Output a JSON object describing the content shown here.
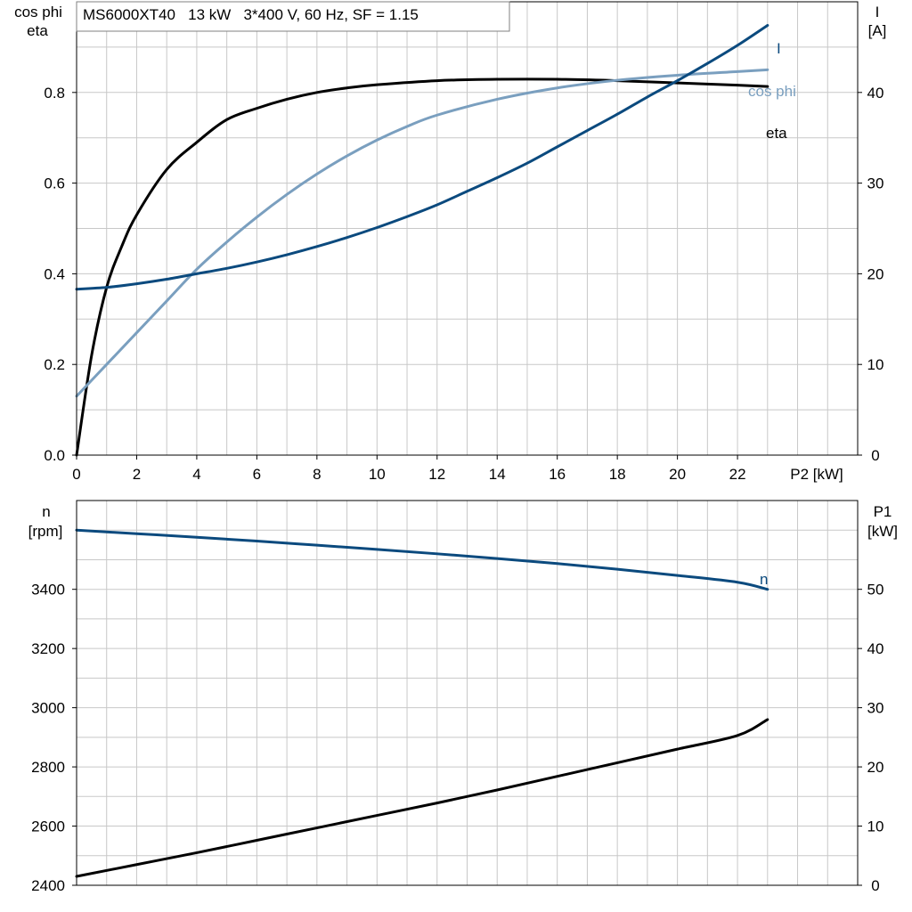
{
  "colors": {
    "grid": "#c8c8c8",
    "axis": "#000000",
    "eta": "#000000",
    "cosphi": "#7a9fbf",
    "current": "#0b4a7e",
    "speed": "#0b4a7e",
    "p1": "#000000"
  },
  "chart_data": [
    {
      "type": "line",
      "title": "MS6000XT40   13 kW   3*400 V, 60 Hz, SF = 1.15",
      "xlabel": "P2 [kW]",
      "ylabel_left": [
        "cos phi",
        "eta"
      ],
      "ylabel_right": [
        "I",
        "[A]"
      ],
      "xlim": [
        0,
        26
      ],
      "ylim_left": [
        0,
        1.0
      ],
      "ylim_right": [
        0,
        50
      ],
      "x_ticks": [
        "0",
        "2",
        "4",
        "6",
        "8",
        "10",
        "12",
        "14",
        "16",
        "18",
        "20",
        "22"
      ],
      "y_ticks_left": [
        "0.0",
        "0.2",
        "0.4",
        "0.6",
        "0.8"
      ],
      "y_ticks_right": [
        "0",
        "10",
        "20",
        "30",
        "40"
      ],
      "grid": true,
      "series": [
        {
          "name": "eta",
          "axis": "left",
          "x": [
            0,
            0.5,
            1,
            1.5,
            2,
            3,
            4,
            5,
            6,
            7,
            8,
            9,
            10,
            12,
            14,
            16,
            18,
            20,
            22,
            23
          ],
          "y": [
            0,
            0.22,
            0.37,
            0.46,
            0.53,
            0.63,
            0.69,
            0.74,
            0.765,
            0.785,
            0.8,
            0.81,
            0.817,
            0.826,
            0.829,
            0.829,
            0.826,
            0.821,
            0.816,
            0.813
          ]
        },
        {
          "name": "cos phi",
          "axis": "left",
          "x": [
            0,
            1,
            2,
            3,
            4,
            5,
            6,
            7,
            8,
            9,
            10,
            11,
            12,
            14,
            16,
            18,
            20,
            22,
            23
          ],
          "y": [
            0.13,
            0.2,
            0.27,
            0.34,
            0.41,
            0.47,
            0.525,
            0.575,
            0.62,
            0.66,
            0.695,
            0.725,
            0.75,
            0.785,
            0.81,
            0.827,
            0.838,
            0.846,
            0.85
          ]
        },
        {
          "name": "I",
          "axis": "right",
          "x": [
            0,
            1,
            2,
            3,
            4,
            5,
            6,
            7,
            8,
            9,
            10,
            11,
            12,
            13,
            14,
            15,
            16,
            17,
            18,
            19,
            20,
            21,
            22,
            23
          ],
          "y": [
            18.3,
            18.5,
            18.9,
            19.4,
            20,
            20.6,
            21.3,
            22.1,
            23,
            24,
            25.1,
            26.3,
            27.6,
            29.1,
            30.6,
            32.2,
            34,
            35.8,
            37.6,
            39.5,
            41.3,
            43.2,
            45.2,
            47.4
          ]
        }
      ]
    },
    {
      "type": "line",
      "xlim": [
        0,
        26
      ],
      "ylabel_left": [
        "n",
        "[rpm]"
      ],
      "ylabel_right": [
        "P1",
        "[kW]"
      ],
      "ylim_left": [
        2400,
        3700
      ],
      "ylim_right": [
        0,
        65
      ],
      "y_ticks_left": [
        "2400",
        "2600",
        "2800",
        "3000",
        "3200",
        "3400"
      ],
      "y_ticks_right": [
        "0",
        "10",
        "20",
        "30",
        "40",
        "50"
      ],
      "grid": true,
      "series": [
        {
          "name": "n",
          "axis": "left",
          "x": [
            0,
            2,
            4,
            6,
            8,
            10,
            12,
            14,
            16,
            18,
            20,
            22,
            23
          ],
          "y": [
            3600,
            3588,
            3576,
            3563,
            3549,
            3535,
            3520,
            3504,
            3487,
            3468,
            3447,
            3424,
            3400
          ]
        },
        {
          "name": "",
          "axis": "right",
          "x": [
            0,
            2,
            4,
            6,
            8,
            10,
            12,
            14,
            16,
            18,
            20,
            22,
            23
          ],
          "y": [
            1.5,
            3.5,
            5.5,
            7.6,
            9.7,
            11.8,
            13.9,
            16.1,
            18.4,
            20.7,
            23,
            25.3,
            28
          ]
        }
      ]
    }
  ]
}
